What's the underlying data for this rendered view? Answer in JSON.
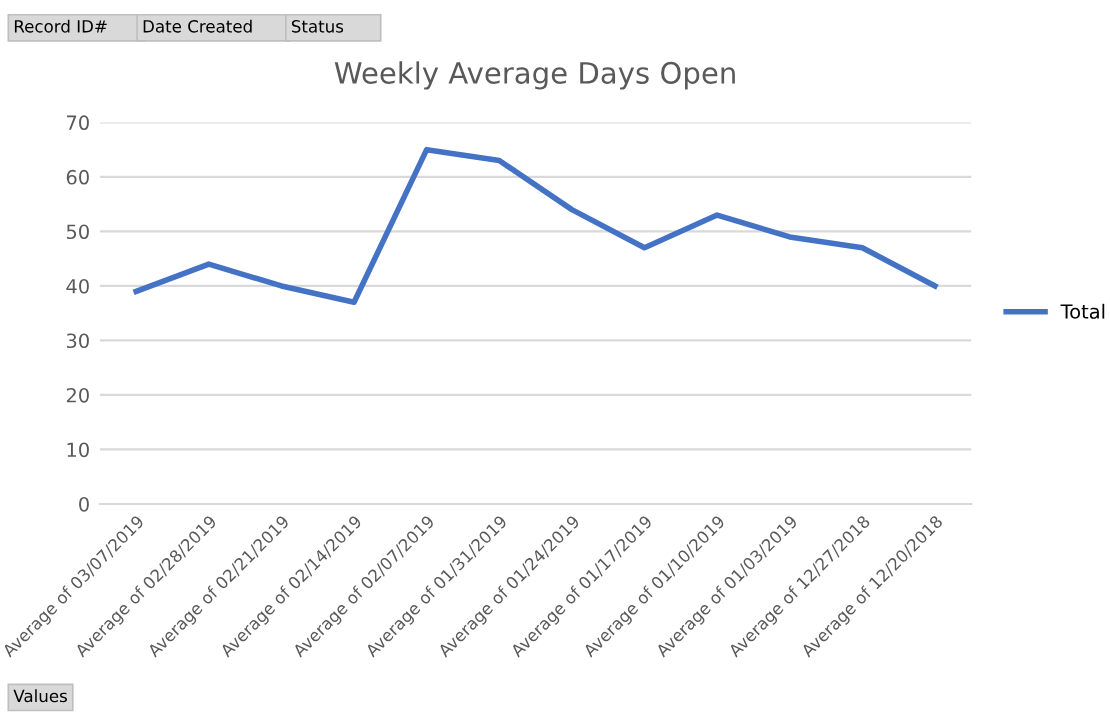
{
  "chart_data": {
    "type": "line",
    "title": "Weekly Average Days Open",
    "categories": [
      "Average of 03/07/2019",
      "Average of 02/28/2019",
      "Average of 02/21/2019",
      "Average of 02/14/2019",
      "Average of 02/07/2019",
      "Average of 01/31/2019",
      "Average of 01/24/2019",
      "Average of 01/17/2019",
      "Average of 01/10/2019",
      "Average of 01/03/2019",
      "Average of 12/27/2018",
      "Average of 12/20/2018"
    ],
    "series": [
      {
        "name": "Total",
        "color": "#4472c4",
        "values": [
          39,
          44,
          40,
          37,
          65,
          63,
          54,
          47,
          53,
          49,
          47,
          40
        ]
      }
    ],
    "ylim": [
      0,
      70
    ],
    "yticks": [
      0,
      10,
      20,
      30,
      40,
      50,
      60,
      70
    ],
    "grid": "y",
    "legend": "right",
    "marker": "none",
    "annotations": [
      "Record ID#",
      "Date Created",
      "Status",
      "Values"
    ]
  }
}
